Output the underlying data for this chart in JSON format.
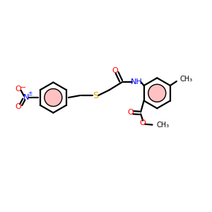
{
  "background_color": "#ffffff",
  "bond_color": "#000000",
  "atom_colors": {
    "O": "#ff0000",
    "N": "#0000ff",
    "S": "#ccaa00",
    "C": "#000000"
  },
  "aromatic_highlight": "#ff9999",
  "fig_width": 3.0,
  "fig_height": 3.0,
  "dpi": 100,
  "xlim": [
    0,
    10
  ],
  "ylim": [
    0,
    10
  ]
}
